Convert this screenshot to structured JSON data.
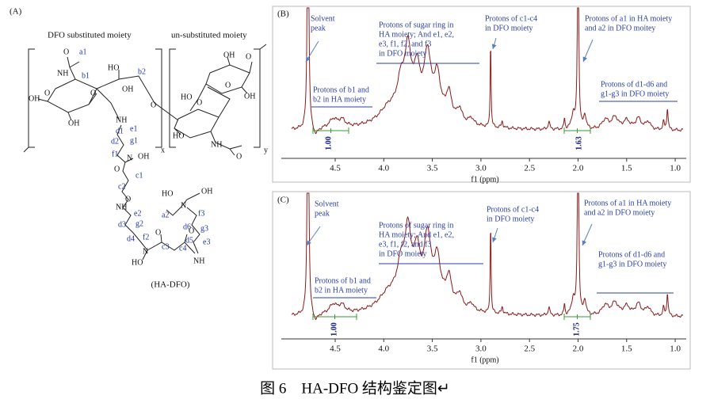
{
  "panel_a": {
    "label": "(A)",
    "headings": [
      "DFO substituted moiety",
      "un-substituted moiety"
    ],
    "atoms": [
      "O",
      "NH",
      "HO",
      "OH",
      "O",
      "O",
      "OH",
      "OH",
      "NH",
      "x",
      "N",
      "OH",
      "O",
      "O",
      "NH",
      "N",
      "HO",
      "O",
      "O",
      "NH",
      "N",
      "OH",
      "HO",
      "OH",
      "O",
      "O",
      "OH",
      "HO",
      "O",
      "O",
      "HO",
      "NH",
      "O",
      "y"
    ],
    "positions": [
      "a1",
      "b1",
      "b2",
      "d1",
      "e1",
      "d2",
      "g1",
      "f1",
      "c1",
      "c2",
      "e2",
      "d3",
      "g2",
      "d4",
      "f2",
      "c3",
      "c4",
      "a2",
      "f3",
      "d6",
      "g3",
      "d5",
      "e3"
    ],
    "compound": "(HA-DFO)"
  },
  "panel_b": {
    "label": "(B)",
    "annotations": [
      [
        "Solvent",
        "peak"
      ],
      [
        "Protons of sugar ring in",
        "HA moiety;  And e1, e2,",
        "e3, f1,  f2, and f3",
        "in DFO moiety"
      ],
      [
        "Protons of c1-c4",
        "in DFO moiety"
      ],
      [
        "Protons of a1 in HA moiety",
        "and a2 in DFO moitey"
      ],
      [
        "Protons of b1 and",
        "b2 in HA moiety"
      ],
      [
        "Protons of d1-d6 and",
        "g1-g3 in DFO moiety"
      ]
    ],
    "integrals": [
      "1.00",
      "1.63"
    ],
    "xticks": [
      "4.5",
      "4.0",
      "3.5",
      "3.0",
      "2.5",
      "2.0",
      "1.5",
      "1.0"
    ],
    "xlabel": "f1 (ppm)"
  },
  "panel_c": {
    "label": "(C)",
    "annotations": [
      [
        "Solvent",
        "peak"
      ],
      [
        "Protons of sugar ring in",
        "HA moiety;  And e1, e2,",
        "e3, f1,  f2, and f3",
        "in DFO moiety"
      ],
      [
        "Protons of c1-c4",
        "in DFO moiety"
      ],
      [
        "Protons of a1 in HA moiety",
        "and a2 in DFO moiety"
      ],
      [
        "Protons of b1 and",
        "b2 in HA moiety"
      ],
      [
        "Protons of d1-d6 and",
        "g1-g3 in DFO moiety"
      ]
    ],
    "integrals": [
      "1.00",
      "1.75"
    ],
    "xticks": [
      "4.5",
      "4.0",
      "3.5",
      "3.0",
      "2.5",
      "2.0",
      "1.5",
      "1.0"
    ],
    "xlabel": "f1 (ppm)"
  },
  "caption": "图 6　HA-DFO 结构鉴定图↵"
}
